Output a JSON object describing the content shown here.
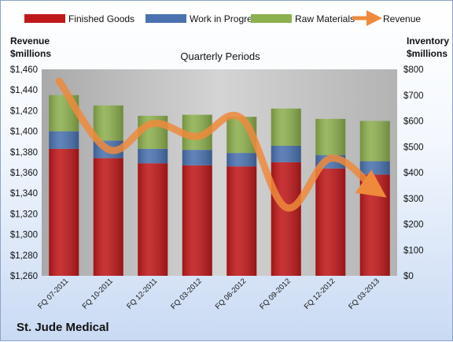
{
  "chart_data": {
    "type": "bar",
    "stacked": true,
    "title": "Quarterly Periods",
    "footer_label": "St. Jude Medical",
    "categories": [
      "FQ 07-2011",
      "FQ 10-2011",
      "FQ 12-2011",
      "FQ 03-2012",
      "FQ 06-2012",
      "FQ 09-2012",
      "FQ 12-2012",
      "FQ 03-2013"
    ],
    "left_axis": {
      "label_line1": "Revenue",
      "label_line2": "$millions",
      "range": [
        1260,
        1460
      ],
      "ticks": [
        "$1,260",
        "$1,280",
        "$1,300",
        "$1,320",
        "$1,340",
        "$1,360",
        "$1,380",
        "$1,400",
        "$1,420",
        "$1,440",
        "$1,460"
      ]
    },
    "right_axis": {
      "label_line1": "Inventory",
      "label_line2": "$millions",
      "range": [
        0,
        800
      ],
      "ticks": [
        "$0",
        "$100",
        "$200",
        "$300",
        "$400",
        "$500",
        "$600",
        "$700",
        "$800"
      ]
    },
    "series": [
      {
        "name": "Finished Goods",
        "color": "#c0191b",
        "values": [
          1383,
          1374,
          1369,
          1367,
          1366,
          1370,
          1364,
          1358
        ]
      },
      {
        "name": "Work in Progress",
        "color": "#4a72b0",
        "values": [
          17,
          17,
          14,
          15,
          13,
          16,
          13,
          13
        ]
      },
      {
        "name": "Raw Materials",
        "color": "#8db04f",
        "values": [
          35,
          34,
          32,
          34,
          35,
          36,
          35,
          39
        ]
      }
    ],
    "line_series": {
      "name": "Revenue",
      "color": "#ef8a3c",
      "axis": "right",
      "values": [
        755,
        490,
        590,
        540,
        610,
        265,
        455,
        335
      ]
    },
    "grid": false,
    "legend_position": "top"
  }
}
